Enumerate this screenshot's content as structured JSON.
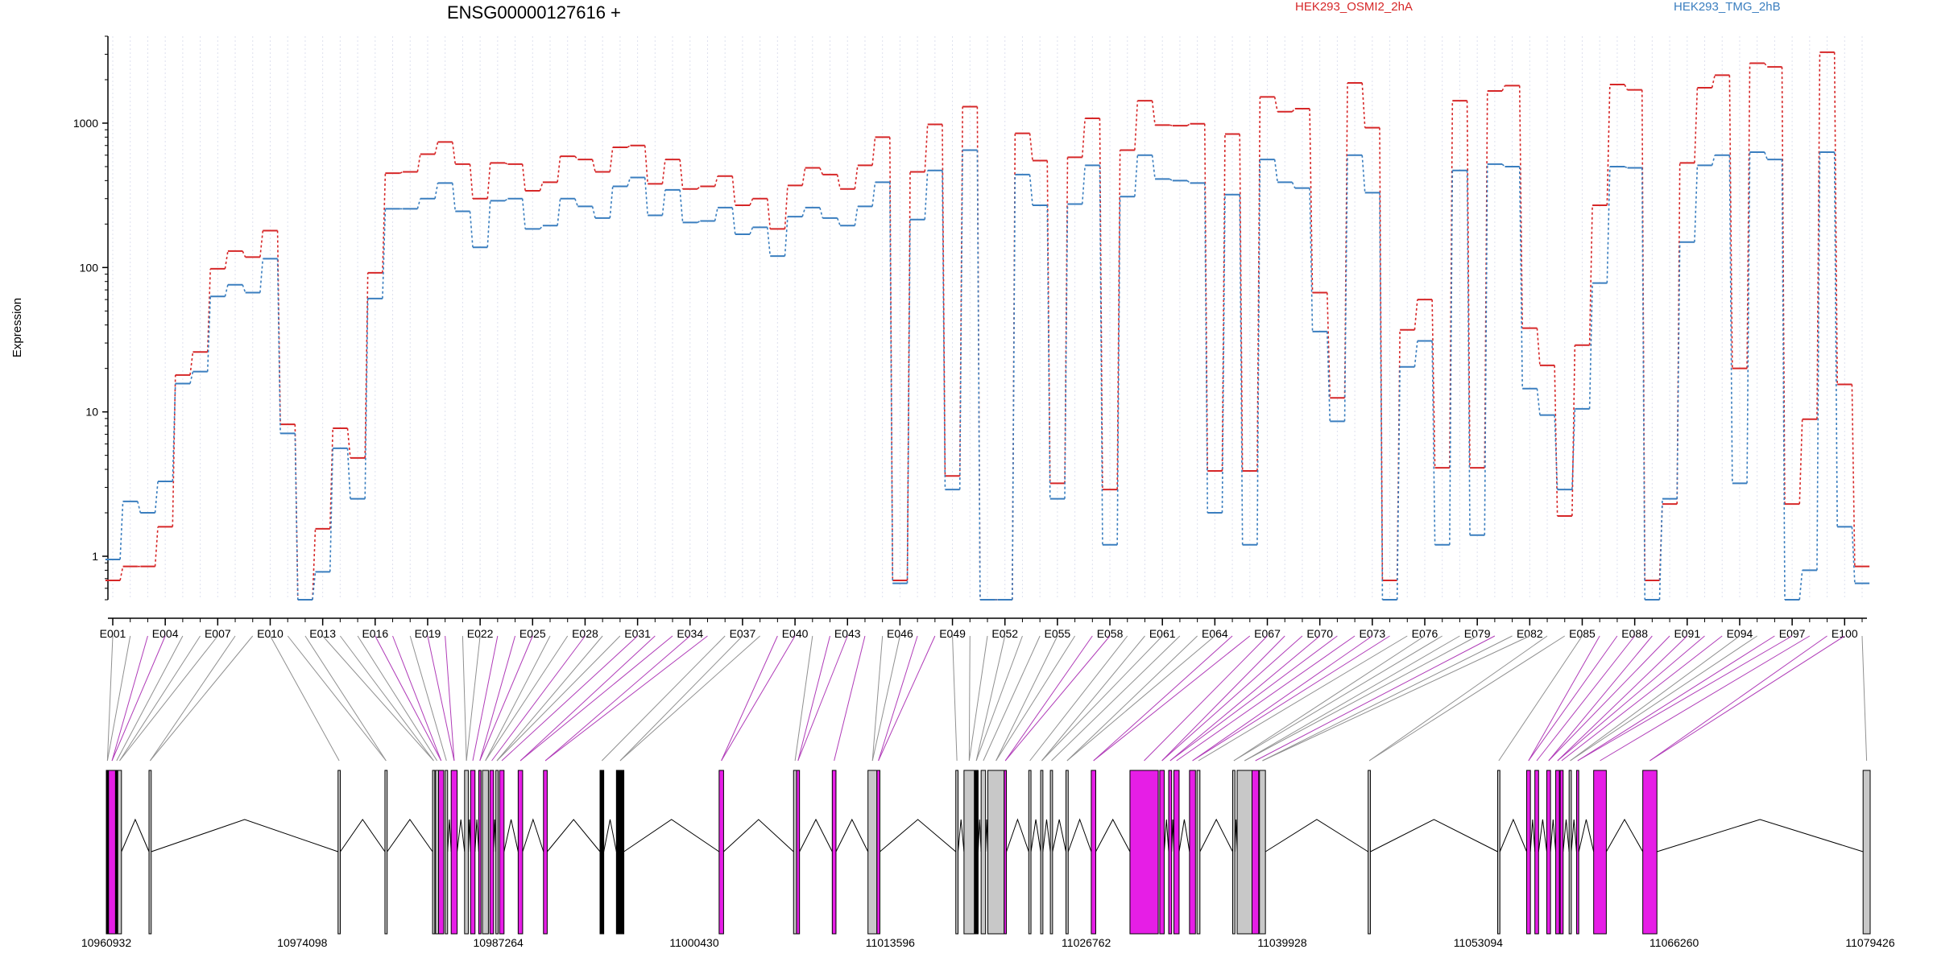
{
  "chart_data": {
    "type": "line",
    "title": "ENSG00000127616 +",
    "ylabel": "Expression",
    "yscale": "log",
    "ylim": [
      0.5,
      4000
    ],
    "yticks": [
      1,
      10,
      100,
      1000
    ],
    "ytick_labels": [
      "1",
      "10",
      "100",
      "1000"
    ],
    "grid": "vertical dotted lines per exon",
    "legend_position": "top",
    "colors": {
      "OSMI2": "#d62728",
      "TMG": "#3a7ebf",
      "highlight": "#e61ee6",
      "gene_box": "#c8c8c8",
      "connector": "#a0a0a0"
    },
    "x_categories": [
      "E001",
      "E002",
      "E003",
      "E004",
      "E005",
      "E006",
      "E007",
      "E008",
      "E009",
      "E010",
      "E011",
      "E012",
      "E013",
      "E014",
      "E015",
      "E016",
      "E017",
      "E018",
      "E019",
      "E020",
      "E021",
      "E022",
      "E023",
      "E024",
      "E025",
      "E026",
      "E027",
      "E028",
      "E029",
      "E030",
      "E031",
      "E032",
      "E033",
      "E034",
      "E035",
      "E036",
      "E037",
      "E038",
      "E039",
      "E040",
      "E041",
      "E042",
      "E043",
      "E044",
      "E045",
      "E046",
      "E047",
      "E048",
      "E049",
      "E050",
      "E051",
      "E052",
      "E053",
      "E054",
      "E055",
      "E056",
      "E057",
      "E058",
      "E059",
      "E060",
      "E061",
      "E062",
      "E063",
      "E064",
      "E065",
      "E066",
      "E067",
      "E068",
      "E069",
      "E070",
      "E071",
      "E072",
      "E073",
      "E074",
      "E075",
      "E076",
      "E077",
      "E078",
      "E079",
      "E080",
      "E081",
      "E082",
      "E083",
      "E084",
      "E085",
      "E086",
      "E087",
      "E088",
      "E089",
      "E090",
      "E091",
      "E092",
      "E093",
      "E094",
      "E095",
      "E096",
      "E097",
      "E098",
      "E099",
      "E100",
      "E101"
    ],
    "x_tick_labels": [
      "E001",
      "E004",
      "E007",
      "E010",
      "E013",
      "E016",
      "E019",
      "E022",
      "E025",
      "E028",
      "E031",
      "E034",
      "E037",
      "E040",
      "E043",
      "E046",
      "E049",
      "E052",
      "E055",
      "E058",
      "E061",
      "E064",
      "E067",
      "E070",
      "E073",
      "E076",
      "E079",
      "E082",
      "E085",
      "E088",
      "E091",
      "E094",
      "E097",
      "E100"
    ],
    "series": [
      {
        "name": "HEK293_OSMI2_2hA",
        "values": [
          0.68,
          0.85,
          0.85,
          1.6,
          18,
          26,
          98,
          130,
          118,
          180,
          8.2,
          0.5,
          1.55,
          7.7,
          4.8,
          92,
          450,
          460,
          610,
          740,
          520,
          300,
          530,
          520,
          340,
          390,
          590,
          560,
          460,
          680,
          700,
          380,
          560,
          350,
          365,
          430,
          270,
          300,
          185,
          370,
          490,
          440,
          350,
          510,
          800,
          0.68,
          460,
          980,
          3.6,
          1300,
          0.5,
          0.5,
          850,
          550,
          3.2,
          580,
          1080,
          2.9,
          650,
          1430,
          970,
          960,
          990,
          3.9,
          840,
          3.9,
          1520,
          1200,
          1260,
          67,
          12.5,
          1900,
          930,
          0.68,
          37,
          60,
          4.1,
          1430,
          4.1,
          1670,
          1820,
          38,
          21,
          1.9,
          29,
          270,
          1850,
          1700,
          0.68,
          2.3,
          530,
          1760,
          2150,
          20,
          2600,
          2450,
          2.3,
          8.9,
          3100,
          15.5,
          0.85
        ]
      },
      {
        "name": "HEK293_TMG_2hB",
        "values": [
          0.95,
          2.4,
          2.0,
          3.3,
          15.7,
          19,
          63,
          76,
          67,
          115,
          7.1,
          0.5,
          0.78,
          5.6,
          2.5,
          61,
          255,
          255,
          300,
          385,
          245,
          138,
          290,
          300,
          185,
          195,
          300,
          265,
          220,
          365,
          420,
          230,
          345,
          205,
          210,
          260,
          170,
          190,
          120,
          225,
          260,
          220,
          195,
          265,
          390,
          0.65,
          215,
          470,
          2.9,
          650,
          0.5,
          0.5,
          440,
          270,
          2.5,
          275,
          510,
          1.2,
          310,
          600,
          410,
          400,
          385,
          2.0,
          320,
          1.2,
          560,
          390,
          355,
          36,
          8.6,
          600,
          330,
          0.5,
          20.5,
          31,
          1.2,
          470,
          1.4,
          520,
          500,
          14.5,
          9.5,
          2.9,
          10.5,
          78,
          500,
          490,
          0.5,
          2.5,
          150,
          510,
          600,
          3.2,
          630,
          560,
          0.5,
          0.8,
          630,
          1.6,
          0.65
        ]
      }
    ],
    "gene_axis_ticks": [
      "10960932",
      "10974098",
      "10987264",
      "11000430",
      "11013596",
      "11026762",
      "11039928",
      "11053094",
      "11066260",
      "11079426"
    ],
    "gene_range": [
      10960932,
      11079426
    ],
    "exon_features": [
      [
        10960932,
        10961080,
        "#000000"
      ],
      [
        10961080,
        10961550,
        "#e61ee6"
      ],
      [
        10961550,
        10961700,
        "#000000"
      ],
      [
        10961700,
        10961950,
        "#c8c8c8"
      ],
      [
        10963800,
        10963950,
        "#c8c8c8"
      ],
      [
        10976500,
        10976650,
        "#c8c8c8"
      ],
      [
        10979650,
        10979800,
        "#c8c8c8"
      ],
      [
        10982850,
        10983000,
        "#c8c8c8"
      ],
      [
        10983050,
        10983250,
        "#c8c8c8"
      ],
      [
        10983250,
        10983600,
        "#e61ee6"
      ],
      [
        10983700,
        10983860,
        "#c8c8c8"
      ],
      [
        10984100,
        10984500,
        "#e61ee6"
      ],
      [
        10985000,
        10985250,
        "#c8c8c8"
      ],
      [
        10985400,
        10985700,
        "#e61ee6"
      ],
      [
        10985950,
        10986100,
        "#e61ee6"
      ],
      [
        10986200,
        10986600,
        "#c8c8c8"
      ],
      [
        10986700,
        10986950,
        "#e61ee6"
      ],
      [
        10987100,
        10987250,
        "#c8c8c8"
      ],
      [
        10987350,
        10987650,
        "#e61ee6"
      ],
      [
        10988600,
        10988900,
        "#e61ee6"
      ],
      [
        10990300,
        10990550,
        "#e61ee6"
      ],
      [
        10994100,
        10994350,
        "#000000"
      ],
      [
        10995200,
        10995700,
        "#000000"
      ],
      [
        11002100,
        11002400,
        "#e61ee6"
      ],
      [
        11007100,
        11007300,
        "#c8c8c8"
      ],
      [
        11007300,
        11007500,
        "#e61ee6"
      ],
      [
        11009700,
        11009950,
        "#e61ee6"
      ],
      [
        11012100,
        11012700,
        "#c8c8c8"
      ],
      [
        11012700,
        11012900,
        "#e61ee6"
      ],
      [
        11018000,
        11018150,
        "#c8c8c8"
      ],
      [
        11018550,
        11019250,
        "#c8c8c8"
      ],
      [
        11019250,
        11019500,
        "#000000"
      ],
      [
        11019700,
        11020000,
        "#c8c8c8"
      ],
      [
        11020150,
        11021250,
        "#c8c8c8"
      ],
      [
        11021250,
        11021400,
        "#e61ee6"
      ],
      [
        11022900,
        11023050,
        "#c8c8c8"
      ],
      [
        11023700,
        11023850,
        "#c8c8c8"
      ],
      [
        11024350,
        11024500,
        "#c8c8c8"
      ],
      [
        11025400,
        11025550,
        "#c8c8c8"
      ],
      [
        11027100,
        11027400,
        "#e61ee6"
      ],
      [
        11029700,
        11031600,
        "#e61ee6"
      ],
      [
        11031700,
        11032000,
        "#e61ee6"
      ],
      [
        11032300,
        11032500,
        "#e61ee6"
      ],
      [
        11032650,
        11033000,
        "#e61ee6"
      ],
      [
        11033700,
        11034100,
        "#e61ee6"
      ],
      [
        11034200,
        11034400,
        "#c8c8c8"
      ],
      [
        11036600,
        11036750,
        "#c8c8c8"
      ],
      [
        11036900,
        11037900,
        "#c8c8c8"
      ],
      [
        11037900,
        11038350,
        "#e61ee6"
      ],
      [
        11038400,
        11038800,
        "#c8c8c8"
      ],
      [
        11045700,
        11045850,
        "#c8c8c8"
      ],
      [
        11054400,
        11054550,
        "#c8c8c8"
      ],
      [
        11056350,
        11056600,
        "#e61ee6"
      ],
      [
        11056900,
        11057150,
        "#e61ee6"
      ],
      [
        11057700,
        11057950,
        "#e61ee6"
      ],
      [
        11058300,
        11058550,
        "#e61ee6"
      ],
      [
        11058600,
        11058800,
        "#e61ee6"
      ],
      [
        11059200,
        11059350,
        "#c8c8c8"
      ],
      [
        11059700,
        11059850,
        "#e61ee6"
      ],
      [
        11060850,
        11061700,
        "#e61ee6"
      ],
      [
        11064150,
        11065100,
        "#e61ee6"
      ],
      [
        11078950,
        11079426,
        "#c8c8c8"
      ]
    ]
  }
}
